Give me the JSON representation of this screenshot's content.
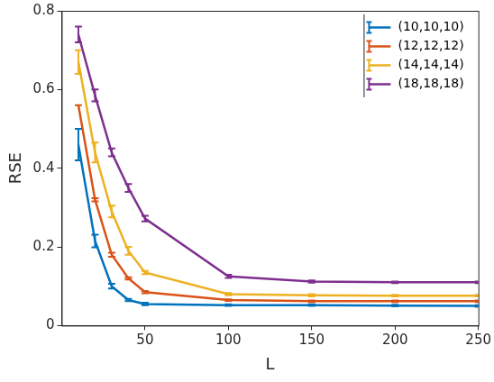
{
  "chart_data": {
    "type": "line",
    "x_label": "L",
    "y_label": "RSE",
    "x": [
      10,
      20,
      30,
      40,
      50,
      100,
      150,
      200,
      250
    ],
    "series": [
      {
        "name": "(10,10,10)",
        "color": "#0072bd",
        "values": [
          0.46,
          0.215,
          0.1,
          0.065,
          0.055,
          0.052,
          0.052,
          0.051,
          0.05
        ],
        "errors": [
          0.04,
          0.016,
          0.006,
          0.003,
          0.003,
          0.002,
          0.002,
          0.002,
          0.002
        ]
      },
      {
        "name": "(12,12,12)",
        "color": "#d95319",
        "values": [
          0.56,
          0.32,
          0.18,
          0.12,
          0.085,
          0.065,
          0.062,
          0.062,
          0.062
        ],
        "errors": [
          0.0,
          0.004,
          0.005,
          0.003,
          0.003,
          0.002,
          0.002,
          0.002,
          0.002
        ]
      },
      {
        "name": "(14,14,14)",
        "color": "#edb120",
        "values": [
          0.67,
          0.44,
          0.29,
          0.19,
          0.135,
          0.08,
          0.077,
          0.076,
          0.076
        ],
        "errors": [
          0.03,
          0.025,
          0.015,
          0.01,
          0.004,
          0.003,
          0.003,
          0.002,
          0.002
        ]
      },
      {
        "name": "(18,18,18)",
        "color": "#7e2f8e",
        "values": [
          0.74,
          0.585,
          0.44,
          0.35,
          0.272,
          0.125,
          0.112,
          0.11,
          0.11
        ],
        "errors": [
          0.02,
          0.015,
          0.01,
          0.01,
          0.007,
          0.004,
          0.003,
          0.002,
          0.002
        ]
      }
    ],
    "xlim": [
      0,
      250
    ],
    "xticks": [
      50,
      100,
      150,
      200,
      250
    ],
    "ylim": [
      0,
      0.8
    ],
    "yticks": [
      0,
      0.2,
      0.4,
      0.6,
      0.8
    ],
    "grid": false,
    "legend": "upper right"
  }
}
